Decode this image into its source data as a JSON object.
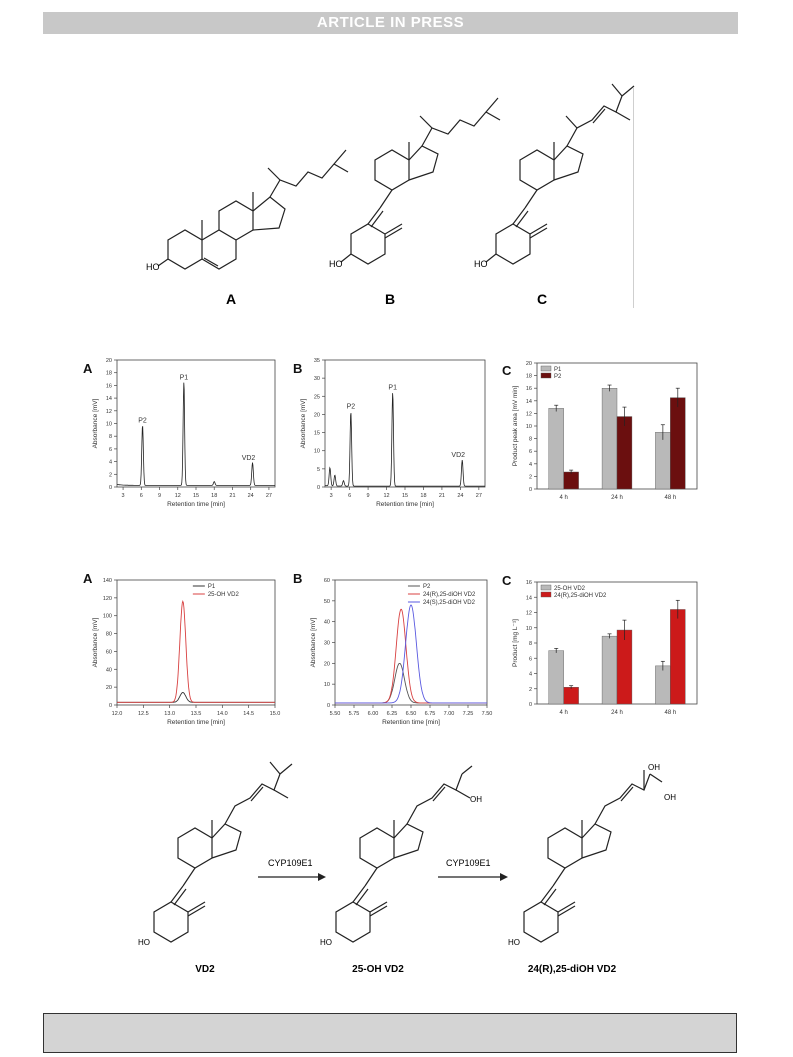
{
  "header": {
    "banner": "ARTICLE IN PRESS"
  },
  "fig_structures": {
    "labels": [
      "A",
      "B",
      "C"
    ],
    "ho_label": "HO"
  },
  "fig_hplc": {
    "panel_labels": [
      "A",
      "B",
      "C"
    ],
    "ylabel_abs": "Absorbance [mV]",
    "xlabel_rt": "Retention time [min]",
    "peak_labels": [
      "P2",
      "P1",
      "VD2"
    ],
    "area_ylabel": "Product peak area [mV min]"
  },
  "fig_chiral": {
    "panel_labels": [
      "A",
      "B",
      "C"
    ],
    "ylabel_abs": "Absorbance [mV]",
    "xlabel_rt": "Retention time [min]",
    "product_ylabel": "Product [mg L⁻¹]"
  },
  "scheme": {
    "enzyme1": "CYP109E1",
    "enzyme2": "CYP109E1",
    "compounds": [
      "VD2",
      "25-OH VD2",
      "24(R),25-diOH VD2"
    ],
    "ho": "HO",
    "oh": "OH"
  },
  "chart_data": [
    {
      "type": "line",
      "panel": "A",
      "xlabel": "Retention time [min]",
      "ylabel": "Absorbance [mV]",
      "xlim": [
        2,
        28
      ],
      "ylim": [
        0,
        20
      ],
      "xticks": [
        3,
        6,
        9,
        12,
        15,
        18,
        21,
        24,
        27
      ],
      "yticks": [
        0,
        2,
        4,
        6,
        8,
        10,
        12,
        14,
        16,
        18,
        20
      ],
      "peaks": [
        {
          "label": "P2",
          "x": 6.2,
          "y": 9.5
        },
        {
          "label": "P1",
          "x": 13.0,
          "y": 16.3
        },
        {
          "label": "VD2",
          "x": 24.3,
          "y": 3.6
        },
        {
          "label": "",
          "x": 18.0,
          "y": 0.6
        }
      ]
    },
    {
      "type": "line",
      "panel": "B",
      "xlabel": "Retention time [min]",
      "ylabel": "Absorbance [mV]",
      "xlim": [
        2,
        28
      ],
      "ylim": [
        0,
        35
      ],
      "xticks": [
        3,
        6,
        9,
        12,
        15,
        18,
        21,
        24,
        27
      ],
      "yticks": [
        0,
        5,
        10,
        15,
        20,
        25,
        30,
        35
      ],
      "peaks": [
        {
          "label": "",
          "x": 2.8,
          "y": 5.0
        },
        {
          "label": "",
          "x": 3.6,
          "y": 3.0
        },
        {
          "label": "",
          "x": 5.0,
          "y": 1.5
        },
        {
          "label": "P2",
          "x": 6.2,
          "y": 20.5
        },
        {
          "label": "P1",
          "x": 13.0,
          "y": 25.8
        },
        {
          "label": "VD2",
          "x": 24.3,
          "y": 7.2
        }
      ]
    },
    {
      "type": "bar",
      "panel": "C",
      "categories": [
        "4 h",
        "24 h",
        "48 h"
      ],
      "ylabel": "Product peak area [mV min]",
      "ylim": [
        0,
        20
      ],
      "yticks": [
        0,
        2,
        4,
        6,
        8,
        10,
        12,
        14,
        16,
        18,
        20
      ],
      "series": [
        {
          "name": "P1",
          "color": "#b9b9b9",
          "values": [
            12.8,
            16.0,
            9.0
          ],
          "errors": [
            0.5,
            0.5,
            1.2
          ]
        },
        {
          "name": "P2",
          "color": "#6b0f0f",
          "values": [
            2.7,
            11.5,
            14.5
          ],
          "errors": [
            0.3,
            1.5,
            1.5
          ]
        }
      ]
    },
    {
      "type": "line",
      "panel": "A",
      "xlabel": "Retention time [min]",
      "ylabel": "Absorbance [mV]",
      "xlim": [
        12.0,
        15.0
      ],
      "ylim": [
        0,
        140
      ],
      "xticks": [
        "12.0",
        "12.5",
        "13.0",
        "13.5",
        "14.0",
        "14.5",
        "15.0"
      ],
      "yticks": [
        0,
        20,
        40,
        60,
        80,
        100,
        120,
        140
      ],
      "series": [
        {
          "name": "P1",
          "color": "#333333",
          "peak_x": 13.25,
          "peak_y": 14,
          "width": 0.08,
          "baseline": 3
        },
        {
          "name": "25-OH VD2",
          "color": "#d84040",
          "peak_x": 13.25,
          "peak_y": 116,
          "width": 0.08,
          "baseline": 3
        }
      ]
    },
    {
      "type": "line",
      "panel": "B",
      "xlabel": "Retention time [min]",
      "ylabel": "Absorbance [mV]",
      "xlim": [
        5.5,
        7.5
      ],
      "ylim": [
        0,
        60
      ],
      "xticks": [
        "5.50",
        "5.75",
        "6.00",
        "6.25",
        "6.50",
        "6.75",
        "7.00",
        "7.25",
        "7.50"
      ],
      "yticks": [
        0,
        10,
        20,
        30,
        40,
        50,
        60
      ],
      "series": [
        {
          "name": "P2",
          "color": "#555555",
          "peak_x": 6.35,
          "peak_y": 20,
          "width": 0.09,
          "baseline": 1
        },
        {
          "name": "24(R),25-diOH VD2",
          "color": "#d84040",
          "peak_x": 6.37,
          "peak_y": 46,
          "width": 0.09,
          "baseline": 1
        },
        {
          "name": "24(S),25-diOH VD2",
          "color": "#5a5ae0",
          "peak_x": 6.5,
          "peak_y": 48,
          "width": 0.1,
          "baseline": 1
        }
      ]
    },
    {
      "type": "bar",
      "panel": "C",
      "categories": [
        "4 h",
        "24 h",
        "48 h"
      ],
      "ylabel": "Product [mg L⁻¹]",
      "ylim": [
        0,
        16
      ],
      "yticks": [
        0,
        2,
        4,
        6,
        8,
        10,
        12,
        14,
        16
      ],
      "series": [
        {
          "name": "25-OH VD2",
          "color": "#b9b9b9",
          "values": [
            7.0,
            8.9,
            5.0
          ],
          "errors": [
            0.3,
            0.3,
            0.6
          ]
        },
        {
          "name": "24(R),25-diOH VD2",
          "color": "#cc1a1a",
          "values": [
            2.2,
            9.7,
            12.4
          ],
          "errors": [
            0.2,
            1.3,
            1.2
          ]
        }
      ]
    }
  ]
}
